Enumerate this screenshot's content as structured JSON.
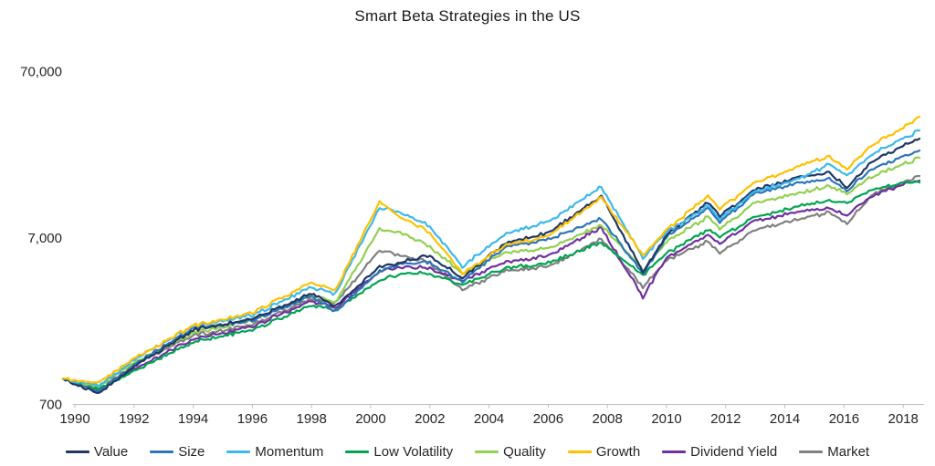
{
  "title": "Smart Beta Strategies in the US",
  "chart_data": {
    "type": "line",
    "title": "Smart Beta Strategies in the US",
    "y_scale": "log",
    "ylim": [
      700,
      100000
    ],
    "grid": false,
    "legend_position": "bottom",
    "axis_color": "#BFBFBF",
    "y_ticks": [
      {
        "value": 700,
        "label": "700"
      },
      {
        "value": 7000,
        "label": "7,000"
      },
      {
        "value": 70000,
        "label": "70,000"
      }
    ],
    "x_ticks": [
      {
        "value": 1990,
        "label": "1990"
      },
      {
        "value": 1992,
        "label": "1992"
      },
      {
        "value": 1994,
        "label": "1994"
      },
      {
        "value": 1996,
        "label": "1996"
      },
      {
        "value": 1998,
        "label": "1998"
      },
      {
        "value": 2000,
        "label": "2000"
      },
      {
        "value": 2002,
        "label": "2002"
      },
      {
        "value": 2004,
        "label": "2004"
      },
      {
        "value": 2006,
        "label": "2006"
      },
      {
        "value": 2008,
        "label": "2008"
      },
      {
        "value": 2010,
        "label": "2010"
      },
      {
        "value": 2012,
        "label": "2012"
      },
      {
        "value": 2014,
        "label": "2014"
      },
      {
        "value": 2016,
        "label": "2016"
      },
      {
        "value": 2018,
        "label": "2018"
      }
    ],
    "x": [
      1989.6,
      1990.8,
      1992,
      1994,
      1996,
      1998,
      1998.8,
      2000.3,
      2001,
      2002,
      2003.1,
      2004.5,
      2006,
      2007.8,
      2009.2,
      2010,
      2011.4,
      2011.8,
      2013,
      2014.5,
      2015.5,
      2016.1,
      2017,
      2018,
      2018.55
    ],
    "series": [
      {
        "name": "Value",
        "color": "#1F3864",
        "values": [
          1000,
          810,
          1180,
          1960,
          2280,
          3240,
          2720,
          4680,
          4980,
          5510,
          4020,
          6410,
          7550,
          12500,
          4390,
          7270,
          11450,
          9360,
          13700,
          16300,
          17200,
          14200,
          20500,
          25000,
          27700
        ]
      },
      {
        "name": "Size",
        "color": "#2E75B6",
        "values": [
          1000,
          830,
          1210,
          2010,
          2230,
          3120,
          2520,
          4390,
          4860,
          4980,
          3870,
          6090,
          6910,
          9120,
          4280,
          7090,
          10600,
          8670,
          13000,
          15100,
          15900,
          13700,
          18500,
          21500,
          23500
        ]
      },
      {
        "name": "Momentum",
        "color": "#3CB9EA",
        "values": [
          1000,
          905,
          1290,
          2080,
          2400,
          3540,
          3240,
          10600,
          9970,
          8250,
          4730,
          7270,
          8790,
          14200,
          5310,
          7550,
          10900,
          9120,
          13300,
          15900,
          19400,
          16700,
          22600,
          27700,
          31000
        ]
      },
      {
        "name": "Low Volatility",
        "color": "#00A550",
        "values": [
          1000,
          870,
          1110,
          1660,
          1960,
          2750,
          2580,
          3870,
          4280,
          4280,
          3680,
          4560,
          4980,
          6570,
          4170,
          5650,
          7840,
          7090,
          9360,
          10900,
          11700,
          11500,
          13700,
          15100,
          15100
        ]
      },
      {
        "name": "Quality",
        "color": "#92D050",
        "values": [
          1000,
          895,
          1240,
          1880,
          2230,
          3240,
          2860,
          7840,
          7550,
          6250,
          4280,
          5650,
          6090,
          8350,
          4500,
          6660,
          9360,
          7840,
          11450,
          13000,
          14400,
          13000,
          16700,
          19400,
          21200
        ]
      },
      {
        "name": "Growth",
        "color": "#FFC000",
        "values": [
          1000,
          940,
          1320,
          2080,
          2490,
          3770,
          3400,
          11500,
          9360,
          7550,
          4280,
          6250,
          7270,
          12200,
          5510,
          7840,
          12500,
          10350,
          15100,
          19000,
          21500,
          18300,
          25700,
          32200,
          37500
        ]
      },
      {
        "name": "Dividend Yield",
        "color": "#7030A0",
        "values": [
          1000,
          860,
          1140,
          1730,
          2060,
          2930,
          2660,
          4390,
          4680,
          4620,
          3870,
          4980,
          5510,
          8040,
          3080,
          5310,
          7270,
          6410,
          8900,
          10100,
          10600,
          9700,
          12700,
          14700,
          15500
        ]
      },
      {
        "name": "Market",
        "color": "#808080",
        "values": [
          1000,
          860,
          1210,
          1820,
          2110,
          3010,
          2830,
          5870,
          5510,
          4980,
          3410,
          4390,
          4730,
          6910,
          3540,
          5170,
          6660,
          5650,
          7840,
          9120,
          10000,
          8600,
          13000,
          15100,
          16500
        ]
      }
    ],
    "draw_order": [
      7,
      6,
      3,
      4,
      1,
      0,
      2,
      5
    ]
  }
}
